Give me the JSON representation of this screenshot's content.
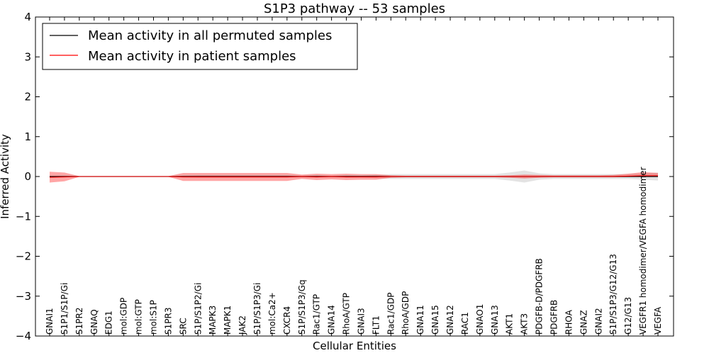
{
  "chart_data": {
    "type": "line",
    "title": "S1P3 pathway -- 53 samples",
    "xlabel": "Cellular Entities",
    "ylabel": "Inferred Activity",
    "ylim": [
      -4,
      4
    ],
    "yticks": [
      -4,
      -3,
      -2,
      -1,
      0,
      1,
      2,
      3,
      4
    ],
    "ytick_labels": [
      "−4",
      "−3",
      "−2",
      "−1",
      "0",
      "1",
      "2",
      "3",
      "4"
    ],
    "grid": false,
    "legend_position": "top-left",
    "categories": [
      "GNAI1",
      "S1P1/S1P/Gi",
      "S1PR2",
      "GNAQ",
      "EDG1",
      "mol:GDP",
      "mol:GTP",
      "mol:S1P",
      "S1PR3",
      "SRC",
      "S1P/S1P2/Gi",
      "MAPK3",
      "MAPK1",
      "JAK2",
      "S1P/S1P3/Gi",
      "mol:Ca2+",
      "CXCR4",
      "S1P/S1P3/Gq",
      "Rac1/GTP",
      "GNA14",
      "RhoA/GTP",
      "GNAI3",
      "FLT1",
      "Rac1/GDP",
      "RhoA/GDP",
      "GNA11",
      "GNA15",
      "GNA12",
      "RAC1",
      "GNAO1",
      "GNA13",
      "AKT1",
      "AKT3",
      "PDGFB-D/PDGFRB",
      "PDGFRB",
      "RHOA",
      "GNAZ",
      "GNAI2",
      "S1P/S1P3/G12/G13",
      "G12/G13",
      "VEGFR1 homodimer/VEGFA homodimer",
      "VEGFA"
    ],
    "series": [
      {
        "name": "Mean activity in all permuted samples",
        "color": "#000000",
        "values": [
          0,
          0,
          0,
          0,
          0,
          0,
          0,
          0,
          0,
          0,
          0,
          0,
          0,
          0,
          0,
          0,
          0,
          0,
          0,
          0,
          0,
          0,
          0,
          0,
          0,
          0,
          0,
          0,
          0,
          0,
          0,
          0,
          0,
          0,
          0,
          0,
          0,
          0,
          0,
          0,
          0,
          0
        ],
        "band_low": [
          0,
          0,
          0,
          0,
          0,
          0,
          0,
          0,
          0,
          -0.02,
          -0.03,
          -0.03,
          -0.03,
          -0.03,
          -0.03,
          -0.03,
          -0.03,
          -0.02,
          -0.03,
          -0.02,
          -0.03,
          -0.02,
          -0.04,
          -0.06,
          -0.06,
          -0.06,
          -0.06,
          -0.06,
          -0.06,
          -0.06,
          -0.06,
          -0.1,
          -0.15,
          -0.08,
          -0.06,
          -0.06,
          -0.06,
          -0.06,
          -0.06,
          -0.06,
          -0.08,
          -0.1
        ],
        "band_high": [
          0,
          0,
          0,
          0,
          0,
          0,
          0,
          0,
          0,
          0.02,
          0.03,
          0.03,
          0.03,
          0.03,
          0.03,
          0.03,
          0.03,
          0.02,
          0.03,
          0.02,
          0.03,
          0.02,
          0.04,
          0.06,
          0.06,
          0.06,
          0.06,
          0.06,
          0.06,
          0.06,
          0.06,
          0.1,
          0.15,
          0.08,
          0.06,
          0.06,
          0.06,
          0.06,
          0.06,
          0.06,
          0.08,
          0.1
        ]
      },
      {
        "name": "Mean activity in patient samples",
        "color": "#ff0000",
        "values": [
          -0.02,
          -0.01,
          0,
          0,
          0,
          0,
          0,
          0,
          0,
          -0.01,
          -0.01,
          -0.01,
          -0.01,
          -0.01,
          -0.01,
          -0.01,
          -0.01,
          0,
          -0.01,
          0,
          -0.01,
          -0.01,
          -0.01,
          0,
          0,
          0,
          0,
          0,
          0,
          0,
          0,
          0,
          0,
          0,
          0,
          0,
          0,
          0,
          0,
          0.01,
          0.02,
          0.02
        ],
        "band_low": [
          -0.15,
          -0.12,
          -0.01,
          -0.01,
          -0.01,
          -0.01,
          -0.01,
          -0.01,
          -0.01,
          -0.11,
          -0.11,
          -0.11,
          -0.11,
          -0.11,
          -0.11,
          -0.11,
          -0.11,
          -0.06,
          -0.09,
          -0.07,
          -0.09,
          -0.08,
          -0.08,
          -0.03,
          -0.02,
          -0.02,
          -0.02,
          -0.02,
          -0.02,
          -0.02,
          -0.02,
          -0.03,
          -0.05,
          -0.03,
          -0.02,
          -0.02,
          -0.02,
          -0.02,
          -0.02,
          -0.01,
          -0.01,
          -0.01
        ],
        "band_high": [
          0.12,
          0.1,
          0.01,
          0.01,
          0.01,
          0.01,
          0.01,
          0.01,
          0.01,
          0.09,
          0.09,
          0.09,
          0.09,
          0.09,
          0.09,
          0.09,
          0.09,
          0.05,
          0.07,
          0.06,
          0.07,
          0.06,
          0.06,
          0.03,
          0.02,
          0.02,
          0.02,
          0.02,
          0.02,
          0.02,
          0.02,
          0.03,
          0.05,
          0.04,
          0.03,
          0.03,
          0.03,
          0.03,
          0.04,
          0.07,
          0.11,
          0.09
        ]
      }
    ]
  }
}
